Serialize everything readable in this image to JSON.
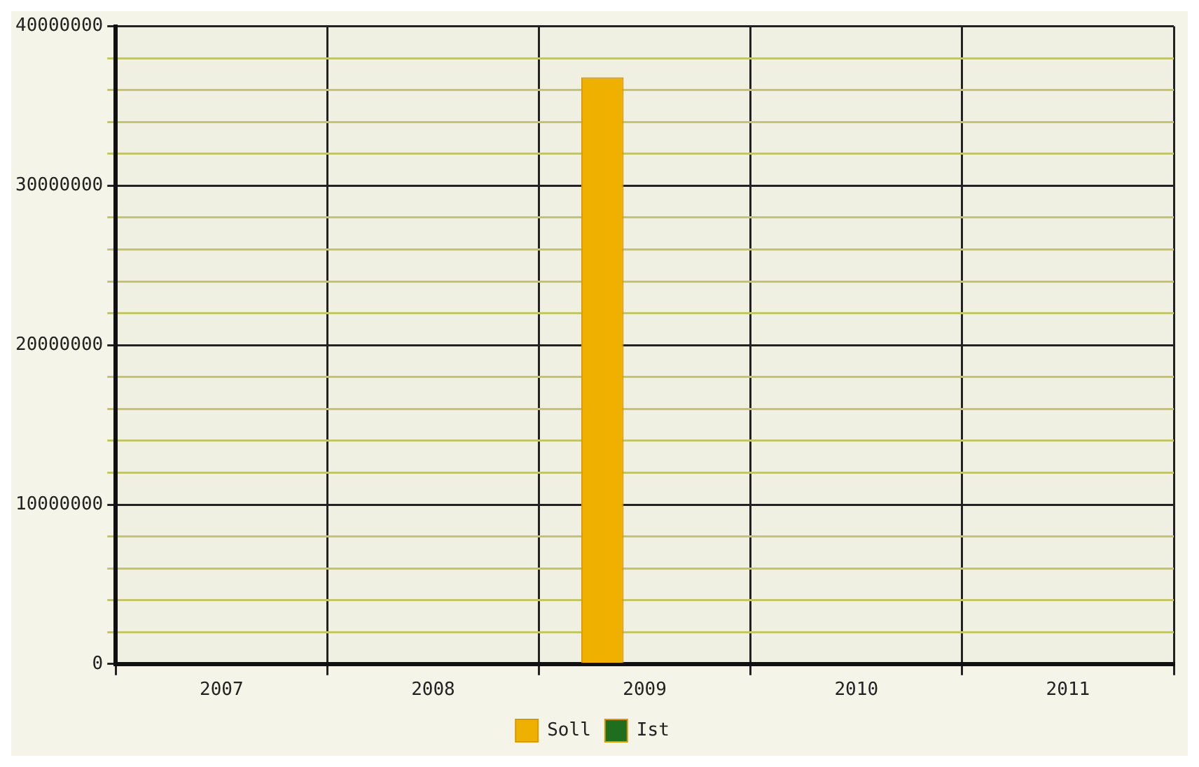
{
  "chart_data": {
    "type": "bar",
    "categories": [
      "2007",
      "2008",
      "2009",
      "2010",
      "2011"
    ],
    "series": [
      {
        "name": "Soll",
        "color": "#f0b000",
        "values": [
          0,
          0,
          36800000,
          0,
          0
        ]
      },
      {
        "name": "Ist",
        "color": "#1e6e1e",
        "values": [
          0,
          0,
          0,
          0,
          0
        ]
      }
    ],
    "ylim": [
      0,
      40000000
    ],
    "yticks": [
      0,
      {
        "value": 2000000,
        "label": null
      },
      {
        "value": 4000000,
        "label": null
      },
      {
        "value": 6000000,
        "label": null
      },
      {
        "value": 8000000,
        "label": null
      },
      10000000,
      {
        "value": 12000000,
        "label": null
      },
      {
        "value": 14000000,
        "label": null
      },
      {
        "value": 16000000,
        "label": null
      },
      {
        "value": 18000000,
        "label": null
      },
      20000000,
      {
        "value": 22000000,
        "label": null
      },
      {
        "value": 24000000,
        "label": null
      },
      {
        "value": 26000000,
        "label": null
      },
      {
        "value": 28000000,
        "label": null
      },
      30000000,
      {
        "value": 32000000,
        "label": null
      },
      {
        "value": 34000000,
        "label": null
      },
      {
        "value": 36000000,
        "label": null
      },
      {
        "value": 38000000,
        "label": null
      },
      40000000
    ],
    "grid": true,
    "legend": "bottom"
  }
}
